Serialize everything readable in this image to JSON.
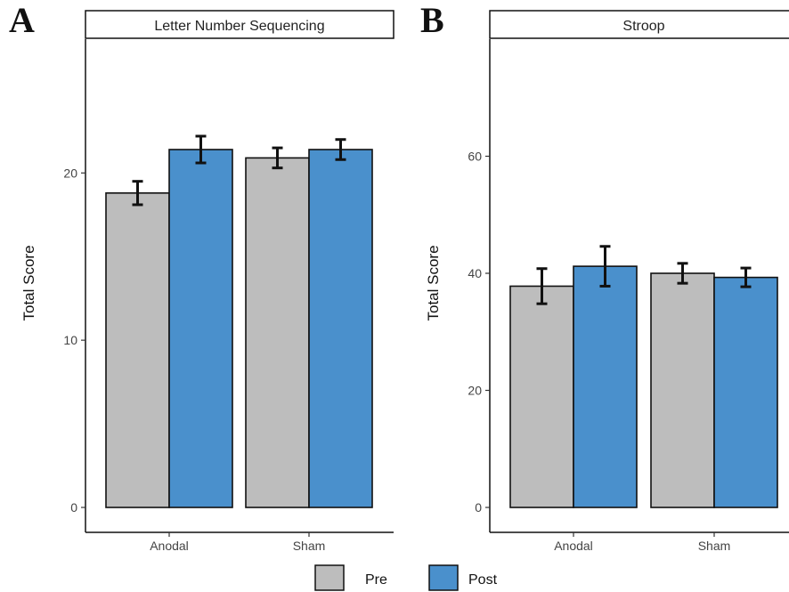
{
  "chart_data": [
    {
      "panel_letter": "A",
      "title": "Letter Number Sequencing",
      "type": "bar",
      "ylabel": "Total Score",
      "categories": [
        "Anodal",
        "Sham"
      ],
      "ylim": [
        0,
        28
      ],
      "yticks": [
        0,
        10,
        20
      ],
      "series": [
        {
          "name": "Pre",
          "values": [
            18.8,
            20.9
          ],
          "errors": [
            0.7,
            0.6
          ],
          "color": "#bdbdbd"
        },
        {
          "name": "Post",
          "values": [
            21.4,
            21.4
          ],
          "errors": [
            0.8,
            0.6
          ],
          "color": "#4a90cc"
        }
      ]
    },
    {
      "panel_letter": "B",
      "title": "Stroop",
      "type": "bar",
      "ylabel": "Total Score",
      "categories": [
        "Anodal",
        "Sham"
      ],
      "ylim": [
        0,
        80
      ],
      "yticks": [
        0,
        20,
        40,
        60
      ],
      "series": [
        {
          "name": "Pre",
          "values": [
            37.8,
            40.0
          ],
          "errors": [
            3.0,
            1.7
          ],
          "color": "#bdbdbd"
        },
        {
          "name": "Post",
          "values": [
            41.2,
            39.3
          ],
          "errors": [
            3.4,
            1.6
          ],
          "color": "#4a90cc"
        }
      ]
    }
  ],
  "legend": {
    "position": "bottom",
    "items": [
      {
        "label": "Pre",
        "color": "#bdbdbd"
      },
      {
        "label": "Post",
        "color": "#4a90cc"
      }
    ]
  }
}
